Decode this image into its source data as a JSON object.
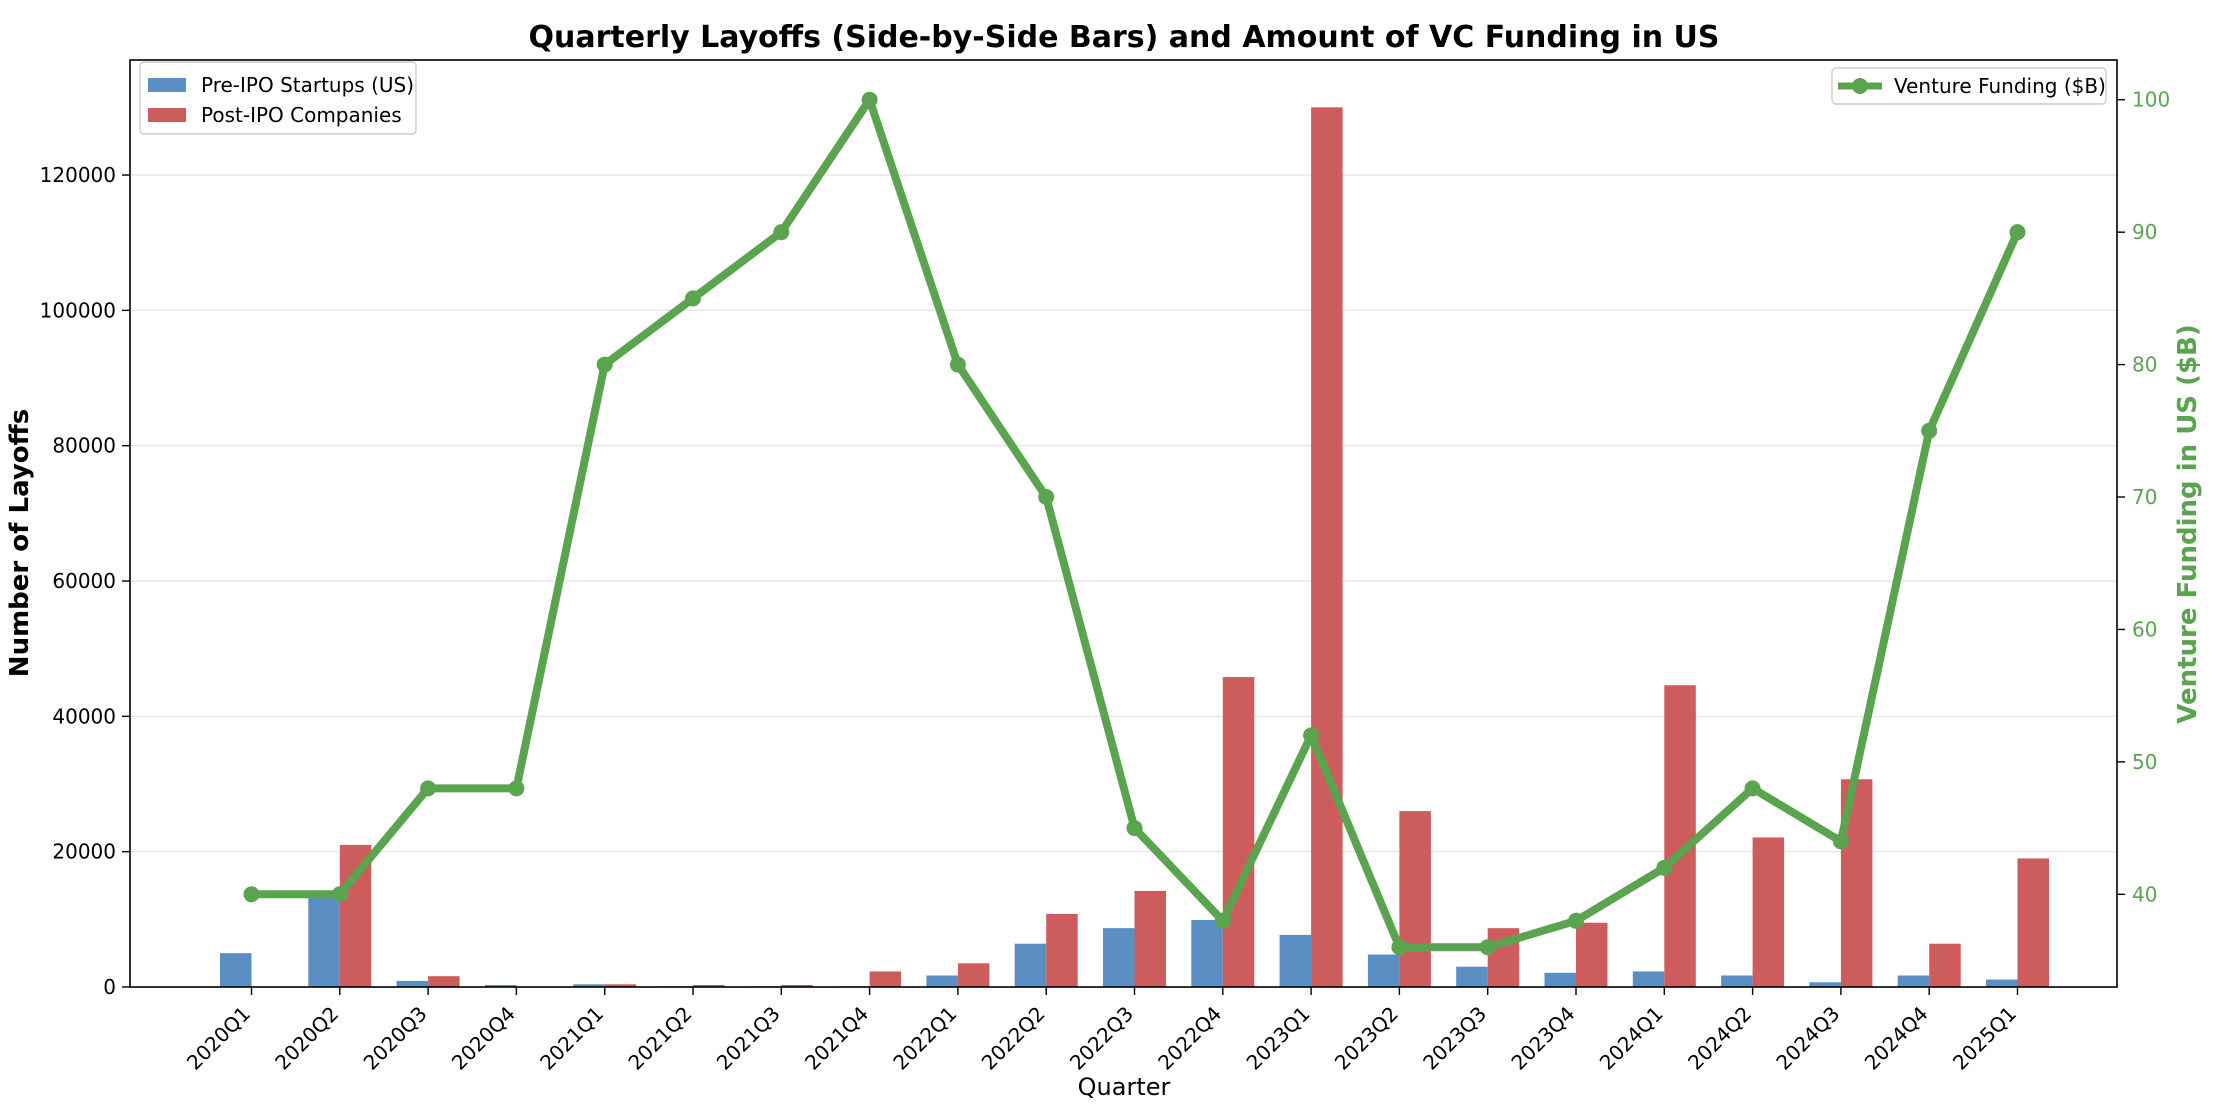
{
  "chart_data": {
    "type": "bar",
    "title": "Quarterly Layoffs (Side-by-Side Bars) and Amount of VC Funding in US",
    "xlabel": "Quarter",
    "ylabel": "Number of Layoffs",
    "y2label": "Venture Funding in US ($B)",
    "categories": [
      "2020Q1",
      "2020Q2",
      "2020Q3",
      "2020Q4",
      "2021Q1",
      "2021Q2",
      "2021Q3",
      "2021Q4",
      "2022Q1",
      "2022Q2",
      "2022Q3",
      "2022Q4",
      "2023Q1",
      "2023Q2",
      "2023Q3",
      "2023Q4",
      "2024Q1",
      "2024Q2",
      "2024Q3",
      "2024Q4",
      "2025Q1"
    ],
    "ylim": [
      0,
      137000
    ],
    "yticks": [
      0,
      20000,
      40000,
      60000,
      80000,
      100000,
      120000
    ],
    "y2lim": [
      33,
      103
    ],
    "y2ticks": [
      40,
      50,
      60,
      70,
      80,
      90,
      100
    ],
    "grid": true,
    "series": [
      {
        "name": "Pre-IPO Startups (US)",
        "kind": "bar",
        "color": "#5b8fc3",
        "values": [
          5000,
          14000,
          900,
          300,
          400,
          100,
          100,
          100,
          1700,
          6400,
          8700,
          9900,
          7700,
          4800,
          3000,
          2100,
          2300,
          1700,
          700,
          1700,
          1100
        ]
      },
      {
        "name": "Post-IPO Companies",
        "kind": "bar",
        "color": "#cd5c5c",
        "values": [
          0,
          21000,
          1600,
          0,
          400,
          300,
          300,
          2300,
          3500,
          10800,
          14200,
          45800,
          130000,
          26000,
          8700,
          9500,
          44600,
          22100,
          30700,
          6400,
          19000
        ]
      },
      {
        "name": "Venture Funding ($B)",
        "kind": "line",
        "axis": "right",
        "color": "#5ba44f",
        "values": [
          40,
          40,
          48,
          48,
          80,
          85,
          90,
          100,
          80,
          70,
          45,
          38,
          52,
          36,
          36,
          38,
          42,
          48,
          44,
          75,
          90
        ]
      }
    ],
    "legend_left_position": "upper-left",
    "legend_right_position": "upper-right"
  }
}
